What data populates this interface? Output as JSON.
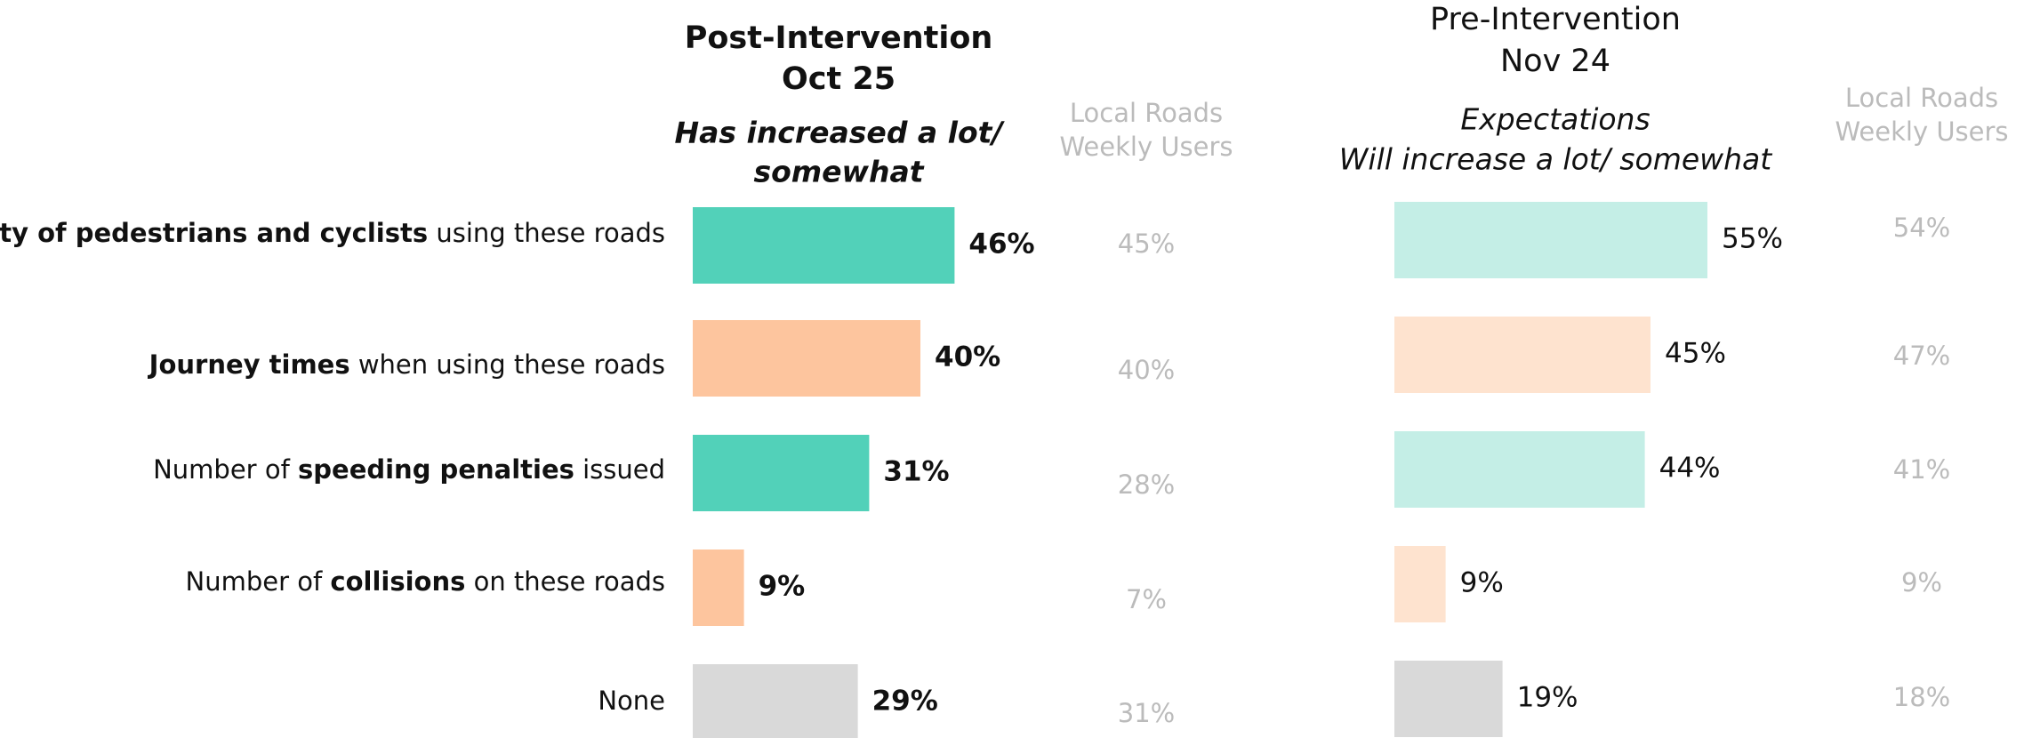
{
  "chart_data": [
    {
      "type": "bar",
      "orientation": "horizontal",
      "title": [
        "Post-Intervention",
        "Oct 25"
      ],
      "subtitle": [
        "Has increased a lot/",
        "somewhat"
      ],
      "categories": [
        [
          {
            "text": "Safety of pedestrians and cyclists",
            "bold": true
          },
          {
            "text": " using these roads"
          }
        ],
        [
          {
            "text": "Journey times",
            "bold": true
          },
          {
            "text": " when using these roads"
          }
        ],
        [
          {
            "text": "Number of "
          },
          {
            "text": "speeding penalties",
            "bold": true
          },
          {
            "text": " issued"
          }
        ],
        [
          {
            "text": "Number of "
          },
          {
            "text": "collisions",
            "bold": true
          },
          {
            "text": " on these roads"
          }
        ],
        [
          {
            "text": "None"
          }
        ]
      ],
      "values": [
        46,
        40,
        31,
        9,
        29
      ],
      "value_labels": [
        "46%",
        "40%",
        "31%",
        "9%",
        "29%"
      ],
      "colors": [
        "#52d1b9",
        "#fdc59e",
        "#52d1b9",
        "#fdc59e",
        "#d9d9d9"
      ],
      "comparison_title": [
        "Local Roads",
        "Weekly Users"
      ],
      "comparison_values": [
        45,
        40,
        28,
        7,
        31
      ],
      "comparison_labels": [
        "45%",
        "40%",
        "28%",
        "7%",
        "31%"
      ]
    },
    {
      "type": "bar",
      "orientation": "horizontal",
      "title": [
        "Pre-Intervention",
        "Nov 24"
      ],
      "subtitle": [
        "Expectations",
        "Will increase a lot/ somewhat"
      ],
      "values": [
        55,
        45,
        44,
        9,
        19
      ],
      "value_labels": [
        "55%",
        "45%",
        "44%",
        "9%",
        "19%"
      ],
      "colors": [
        "#c4eee6",
        "#fee3cf",
        "#c4eee6",
        "#fee3cf",
        "#d9d9d9"
      ],
      "comparison_title": [
        "Local Roads",
        "Weekly Users"
      ],
      "comparison_values": [
        54,
        47,
        41,
        9,
        18
      ],
      "comparison_labels": [
        "54%",
        "47%",
        "41%",
        "9%",
        "18%"
      ]
    }
  ]
}
